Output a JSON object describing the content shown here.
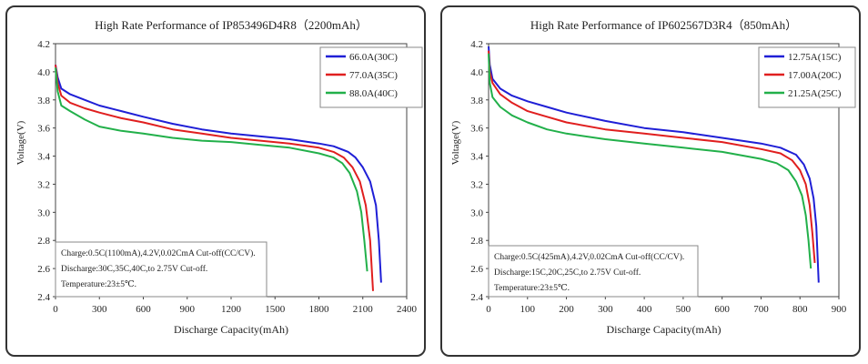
{
  "chart_data": [
    {
      "type": "line",
      "title": "High Rate Performance of  IP853496D4R8（2200mAh）",
      "xlabel": "Discharge Capacity(mAh)",
      "ylabel": "Voltage(V)",
      "xlim": [
        0,
        2400
      ],
      "ylim": [
        2.4,
        4.2
      ],
      "xticks": [
        "0",
        "300",
        "600",
        "900",
        "1200",
        "1500",
        "1800",
        "2100",
        "2400"
      ],
      "yticks": [
        "2.4",
        "2.6",
        "2.8",
        "3.0",
        "3.2",
        "3.4",
        "3.6",
        "3.8",
        "4.0",
        "4.2"
      ],
      "legend_position": "top-right",
      "notes": [
        "Charge:0.5C(1100mA),4.2V,0.02CmA Cut-off(CC/CV).",
        "Discharge:30C,35C,40C,to 2.75V Cut-off.",
        "Temperature:23±5℃."
      ],
      "series": [
        {
          "name": "66.0A(30C)",
          "color": "#1f1fd6",
          "x": [
            0,
            15,
            40,
            100,
            200,
            300,
            450,
            600,
            800,
            1000,
            1200,
            1400,
            1600,
            1800,
            1900,
            2000,
            2050,
            2100,
            2150,
            2190,
            2210,
            2225
          ],
          "y": [
            4.05,
            3.96,
            3.88,
            3.84,
            3.8,
            3.76,
            3.72,
            3.68,
            3.63,
            3.59,
            3.56,
            3.54,
            3.52,
            3.49,
            3.47,
            3.43,
            3.39,
            3.32,
            3.22,
            3.05,
            2.8,
            2.5
          ]
        },
        {
          "name": "77.0A(35C)",
          "color": "#e01f1f",
          "x": [
            0,
            15,
            40,
            100,
            200,
            300,
            450,
            600,
            800,
            1000,
            1200,
            1400,
            1600,
            1800,
            1900,
            1970,
            2030,
            2080,
            2120,
            2150,
            2170
          ],
          "y": [
            4.05,
            3.92,
            3.83,
            3.78,
            3.74,
            3.71,
            3.67,
            3.64,
            3.59,
            3.56,
            3.53,
            3.51,
            3.49,
            3.46,
            3.43,
            3.39,
            3.32,
            3.22,
            3.05,
            2.8,
            2.44
          ]
        },
        {
          "name": "88.0A(40C)",
          "color": "#22b04a",
          "x": [
            0,
            15,
            40,
            100,
            200,
            300,
            450,
            600,
            800,
            1000,
            1200,
            1400,
            1600,
            1800,
            1900,
            1960,
            2010,
            2060,
            2090,
            2110,
            2130
          ],
          "y": [
            4.03,
            3.86,
            3.76,
            3.72,
            3.66,
            3.61,
            3.58,
            3.56,
            3.53,
            3.51,
            3.5,
            3.48,
            3.46,
            3.42,
            3.39,
            3.35,
            3.28,
            3.15,
            3.0,
            2.8,
            2.58
          ]
        }
      ]
    },
    {
      "type": "line",
      "title": "High Rate Performance of  IP602567D3R4（850mAh）",
      "xlabel": "Discharge Capacity(mAh)",
      "ylabel": "Voltage(V)",
      "xlim": [
        0,
        900
      ],
      "ylim": [
        2.4,
        4.2
      ],
      "xticks": [
        "0",
        "100",
        "200",
        "300",
        "400",
        "500",
        "600",
        "700",
        "800",
        "900"
      ],
      "yticks": [
        "2.4",
        "2.6",
        "2.8",
        "3.0",
        "3.2",
        "3.4",
        "3.6",
        "3.8",
        "4.0",
        "4.2"
      ],
      "legend_position": "top-right",
      "notes": [
        "Charge:0.5C(425mA),4.2V,0.02CmA Cut-off(CC/CV).",
        "Discharge:15C,20C,25C,to 2.75V Cut-off.",
        "Temperature:23±5℃."
      ],
      "series": [
        {
          "name": "12.75A(15C)",
          "color": "#1f1fd6",
          "x": [
            0,
            3,
            10,
            30,
            60,
            100,
            150,
            200,
            300,
            400,
            500,
            600,
            700,
            750,
            790,
            810,
            825,
            835,
            842,
            848
          ],
          "y": [
            4.18,
            4.05,
            3.95,
            3.88,
            3.83,
            3.79,
            3.75,
            3.71,
            3.65,
            3.6,
            3.57,
            3.53,
            3.49,
            3.46,
            3.41,
            3.34,
            3.24,
            3.1,
            2.9,
            2.5
          ]
        },
        {
          "name": "17.00A(20C)",
          "color": "#e01f1f",
          "x": [
            0,
            3,
            10,
            30,
            60,
            100,
            150,
            200,
            300,
            400,
            500,
            600,
            700,
            750,
            780,
            800,
            815,
            825,
            832,
            838
          ],
          "y": [
            4.15,
            4.0,
            3.92,
            3.84,
            3.78,
            3.72,
            3.68,
            3.64,
            3.59,
            3.56,
            3.53,
            3.5,
            3.45,
            3.42,
            3.37,
            3.3,
            3.2,
            3.05,
            2.85,
            2.64
          ]
        },
        {
          "name": "21.25A(25C)",
          "color": "#22b04a",
          "x": [
            0,
            3,
            10,
            30,
            60,
            100,
            150,
            200,
            300,
            400,
            500,
            600,
            700,
            740,
            770,
            790,
            805,
            815,
            822,
            828
          ],
          "y": [
            4.13,
            3.92,
            3.82,
            3.75,
            3.69,
            3.64,
            3.59,
            3.56,
            3.52,
            3.49,
            3.46,
            3.43,
            3.38,
            3.35,
            3.3,
            3.22,
            3.12,
            2.98,
            2.8,
            2.6
          ]
        }
      ]
    }
  ]
}
